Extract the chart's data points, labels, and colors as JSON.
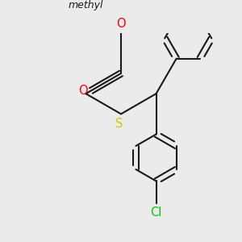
{
  "bg_color": "#ebebeb",
  "bond_color": "#1a1a1a",
  "S_color": "#cccc00",
  "O_color": "#ff0000",
  "Cl_color": "#00cc00",
  "lw": 1.5,
  "figsize": [
    3.0,
    3.0
  ],
  "dpi": 100,
  "methyl_label": "methyl",
  "S_label": "S",
  "O_label": "O",
  "Cl_label": "Cl"
}
